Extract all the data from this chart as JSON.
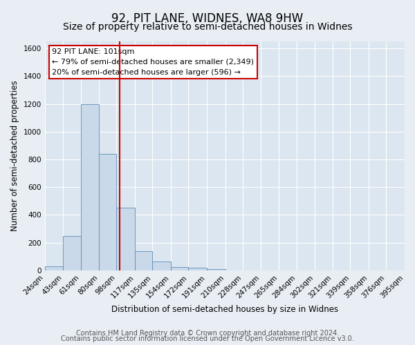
{
  "title": "92, PIT LANE, WIDNES, WA8 9HW",
  "subtitle": "Size of property relative to semi-detached houses in Widnes",
  "xlabel": "Distribution of semi-detached houses by size in Widnes",
  "ylabel": "Number of semi-detached properties",
  "footer1": "Contains HM Land Registry data © Crown copyright and database right 2024.",
  "footer2": "Contains public sector information licensed under the Open Government Licence v3.0.",
  "annotation_text_line1": "92 PIT LANE: 101sqm",
  "annotation_text_line2": "← 79% of semi-detached houses are smaller (2,349)",
  "annotation_text_line3": "20% of semi-detached houses are larger (596) →",
  "bin_edges": [
    24,
    43,
    61,
    80,
    98,
    117,
    135,
    154,
    172,
    191,
    210,
    228,
    247,
    265,
    284,
    302,
    321,
    339,
    358,
    376,
    395
  ],
  "bar_heights": [
    30,
    250,
    1200,
    840,
    450,
    140,
    65,
    25,
    20,
    10,
    0,
    0,
    0,
    0,
    0,
    0,
    0,
    0,
    0,
    0
  ],
  "bar_color": "#c9d9ea",
  "bar_edge_color": "#5b8db8",
  "vline_color": "#cc0000",
  "vline_x": 101,
  "annotation_box_color": "#cc0000",
  "ylim": [
    0,
    1650
  ],
  "yticks": [
    0,
    200,
    400,
    600,
    800,
    1000,
    1200,
    1400,
    1600
  ],
  "bg_color": "#e8eef4",
  "plot_bg_color": "#dce6f0",
  "grid_color": "#ffffff",
  "title_fontsize": 12,
  "subtitle_fontsize": 10,
  "axis_label_fontsize": 8.5,
  "tick_fontsize": 7.5,
  "footer_fontsize": 7,
  "annot_fontsize": 8
}
